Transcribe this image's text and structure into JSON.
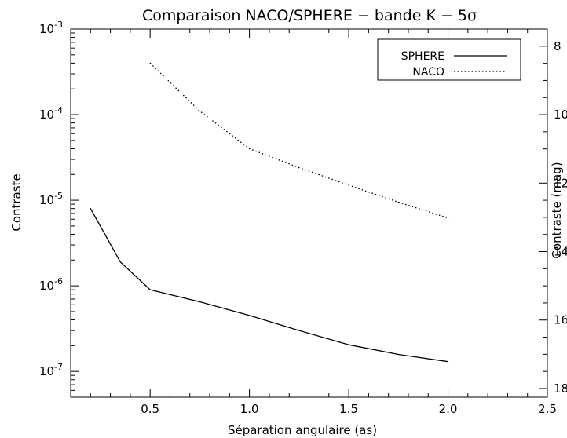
{
  "chart_data": {
    "type": "line",
    "title": "Comparaison NACO/SPHERE − bande K − 5σ",
    "xlabel": "Séparation angulaire (as)",
    "ylabel": "Contraste",
    "y2label": "Contraste (mag)",
    "xlim": [
      0.1,
      2.5
    ],
    "ylim": [
      5e-08,
      0.001
    ],
    "yscale": "log",
    "x_ticks": [
      "0.5",
      "1.0",
      "1.5",
      "2.0",
      "2.5"
    ],
    "x_tick_values": [
      0.5,
      1.0,
      1.5,
      2.0,
      2.5
    ],
    "y_ticks": [
      {
        "base": "10",
        "exp": "-3",
        "value": 0.001
      },
      {
        "base": "10",
        "exp": "-4",
        "value": 0.0001
      },
      {
        "base": "10",
        "exp": "-5",
        "value": 1e-05
      },
      {
        "base": "10",
        "exp": "-6",
        "value": 1e-06
      },
      {
        "base": "10",
        "exp": "-7",
        "value": 1e-07
      }
    ],
    "y2_ticks": [
      "8",
      "10",
      "12",
      "14",
      "16",
      "18"
    ],
    "y2_tick_values": [
      8,
      10,
      12,
      14,
      16,
      18
    ],
    "legend_position": "top-right",
    "grid": false,
    "series": [
      {
        "name": "SPHERE",
        "style": "solid",
        "color": "#000000",
        "x": [
          0.2,
          0.35,
          0.5,
          0.75,
          1.0,
          1.25,
          1.5,
          1.75,
          2.0
        ],
        "y": [
          8e-06,
          1.9e-06,
          9e-07,
          6.5e-07,
          4.5e-07,
          3e-07,
          2.05e-07,
          1.58e-07,
          1.3e-07
        ]
      },
      {
        "name": "NACO",
        "style": "dotted",
        "color": "#000000",
        "x": [
          0.5,
          0.75,
          1.0,
          1.25,
          1.5,
          1.75,
          2.0
        ],
        "y": [
          0.0004,
          0.00011,
          4e-05,
          2.4e-05,
          1.5e-05,
          9.5e-06,
          6.2e-06
        ]
      }
    ]
  }
}
